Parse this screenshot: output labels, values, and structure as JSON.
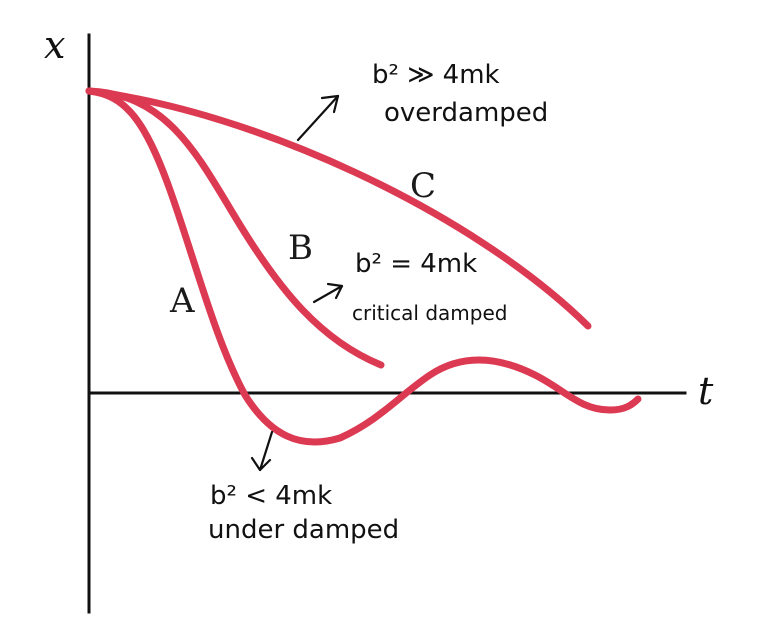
{
  "axes": {
    "x_label": "x",
    "t_label": "t"
  },
  "curves": {
    "A": {
      "label": "A"
    },
    "B": {
      "label": "B"
    },
    "C": {
      "label": "C"
    }
  },
  "notes": {
    "overdamped": {
      "condition": "b² ≫ 4mk",
      "name": "overdamped"
    },
    "critical": {
      "condition": "b² = 4mk",
      "name": "critical damped"
    },
    "underdamped": {
      "condition": "b² < 4mk",
      "name": "under damped"
    }
  },
  "colors": {
    "curve": "#dc3a52",
    "axis": "#111111",
    "ink": "#111111"
  }
}
